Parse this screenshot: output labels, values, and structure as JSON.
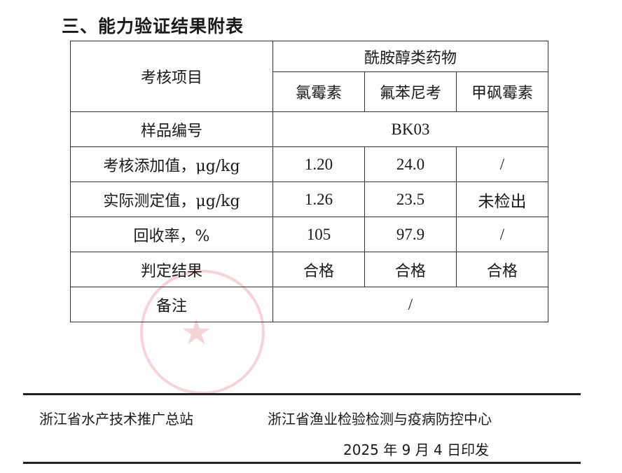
{
  "title": "三、能力验证结果附表",
  "table": {
    "header_item": "考核项目",
    "group": "酰胺醇类药物",
    "drugs": [
      "氯霉素",
      "氟苯尼考",
      "甲砜霉素"
    ],
    "sample_label": "样品编号",
    "sample_id": "BK03",
    "rows": [
      {
        "label": "考核添加值，μg/kg",
        "values": [
          "1.20",
          "24.0",
          "/"
        ]
      },
      {
        "label": "实际测定值，μg/kg",
        "values": [
          "1.26",
          "23.5",
          "未检出"
        ]
      },
      {
        "label": "回收率，%",
        "values": [
          "105",
          "97.9",
          "/"
        ]
      },
      {
        "label": "判定结果",
        "values": [
          "合格",
          "合格",
          "合格"
        ]
      }
    ],
    "remark_label": "备注",
    "remark": "/"
  },
  "footer": {
    "org1": "浙江省水产技术推广总站",
    "org2": "浙江省渔业检验检测与疫病防控中心",
    "date": "2025 年 9 月 4 日印发"
  },
  "stamp_color": "#dc5a64"
}
